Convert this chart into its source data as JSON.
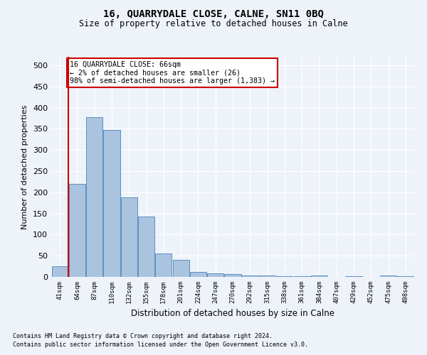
{
  "title": "16, QUARRYDALE CLOSE, CALNE, SN11 0BQ",
  "subtitle": "Size of property relative to detached houses in Calne",
  "xlabel": "Distribution of detached houses by size in Calne",
  "ylabel": "Number of detached properties",
  "footnote1": "Contains HM Land Registry data © Crown copyright and database right 2024.",
  "footnote2": "Contains public sector information licensed under the Open Government Licence v3.0.",
  "annotation_line1": "16 QUARRYDALE CLOSE: 66sqm",
  "annotation_line2": "← 2% of detached houses are smaller (26)",
  "annotation_line3": "98% of semi-detached houses are larger (1,383) →",
  "bar_labels": [
    "41sqm",
    "64sqm",
    "87sqm",
    "110sqm",
    "132sqm",
    "155sqm",
    "178sqm",
    "201sqm",
    "224sqm",
    "247sqm",
    "270sqm",
    "292sqm",
    "315sqm",
    "338sqm",
    "361sqm",
    "384sqm",
    "407sqm",
    "429sqm",
    "452sqm",
    "475sqm",
    "498sqm"
  ],
  "bar_values": [
    25,
    220,
    378,
    347,
    188,
    143,
    55,
    40,
    12,
    8,
    6,
    4,
    3,
    2,
    1,
    3,
    0,
    2,
    0,
    3,
    1
  ],
  "bar_color": "#aac4e0",
  "bar_edge_color": "#5b8fc4",
  "reference_line_color": "#cc0000",
  "ylim": [
    0,
    520
  ],
  "yticks": [
    0,
    50,
    100,
    150,
    200,
    250,
    300,
    350,
    400,
    450,
    500
  ],
  "bg_color": "#eef3fa",
  "grid_color": "#ffffff",
  "annotation_box_color": "#cc0000"
}
